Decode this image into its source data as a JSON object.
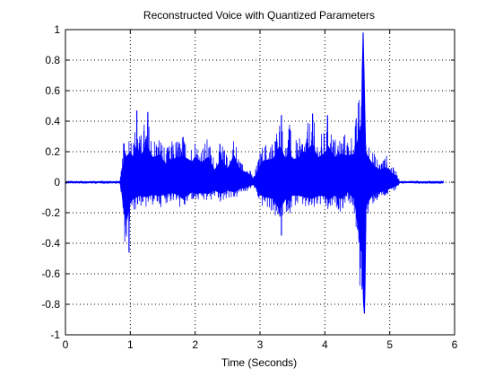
{
  "colors": {
    "background": "#ffffff",
    "axes": "#000000",
    "grid": "#000000",
    "signal": "#0000ff"
  },
  "chart_data": {
    "type": "line",
    "title": "Reconstructed Voice with Quantized Parameters",
    "xlabel": "Time (Seconds)",
    "ylabel": "",
    "xlim": [
      0,
      6
    ],
    "ylim": [
      -1,
      1
    ],
    "grid": true,
    "x_ticks": [
      0,
      1,
      2,
      3,
      4,
      5,
      6
    ],
    "y_ticks": [
      -1,
      -0.8,
      -0.6,
      -0.4,
      -0.2,
      0,
      0.2,
      0.4,
      0.6,
      0.8,
      1
    ],
    "x_tick_labels": [
      "0",
      "1",
      "2",
      "3",
      "4",
      "5",
      "6"
    ],
    "y_tick_labels": [
      "-1",
      "-0.8",
      "-0.6",
      "-0.4",
      "-0.2",
      "0",
      "0.2",
      "0.4",
      "0.6",
      "0.8",
      "1"
    ],
    "series": [
      {
        "color": "#0000ff",
        "envelope": {
          "x": [
            0.0,
            0.3,
            0.6,
            0.84,
            0.86,
            0.9,
            0.95,
            1.0,
            1.05,
            1.1,
            1.15,
            1.25,
            1.35,
            1.45,
            1.55,
            1.65,
            1.75,
            1.8,
            1.95,
            2.0,
            2.1,
            2.2,
            2.3,
            2.4,
            2.5,
            2.6,
            2.7,
            2.8,
            2.9,
            3.0,
            3.05,
            3.2,
            3.3,
            3.4,
            3.45,
            3.5,
            3.6,
            3.7,
            3.8,
            3.9,
            4.0,
            4.05,
            4.15,
            4.25,
            4.35,
            4.45,
            4.55,
            4.58,
            4.62,
            4.66,
            4.75,
            4.85,
            4.95,
            5.05,
            5.1,
            5.15,
            5.3,
            5.5,
            5.83
          ],
          "ymax": [
            0.01,
            0.01,
            0.01,
            0.01,
            0.08,
            0.28,
            0.32,
            0.36,
            0.3,
            0.47,
            0.3,
            0.46,
            0.3,
            0.33,
            0.22,
            0.28,
            0.3,
            0.32,
            0.25,
            0.3,
            0.24,
            0.3,
            0.15,
            0.28,
            0.17,
            0.32,
            0.14,
            0.12,
            0.04,
            0.2,
            0.26,
            0.28,
            0.44,
            0.28,
            0.4,
            0.28,
            0.28,
            0.36,
            0.45,
            0.3,
            0.35,
            0.44,
            0.3,
            0.34,
            0.32,
            0.34,
            0.65,
            0.98,
            0.4,
            0.32,
            0.2,
            0.15,
            0.18,
            0.1,
            0.08,
            0.01,
            0.01,
            0.01,
            0.01
          ],
          "ymin": [
            -0.01,
            -0.01,
            -0.01,
            -0.01,
            -0.1,
            -0.38,
            -0.46,
            -0.24,
            -0.2,
            -0.18,
            -0.16,
            -0.18,
            -0.15,
            -0.17,
            -0.14,
            -0.13,
            -0.16,
            -0.2,
            -0.12,
            -0.14,
            -0.13,
            -0.14,
            -0.1,
            -0.14,
            -0.1,
            -0.12,
            -0.08,
            -0.06,
            -0.03,
            -0.15,
            -0.17,
            -0.2,
            -0.33,
            -0.2,
            -0.22,
            -0.16,
            -0.16,
            -0.18,
            -0.2,
            -0.16,
            -0.17,
            -0.22,
            -0.16,
            -0.2,
            -0.12,
            -0.2,
            -0.8,
            -0.86,
            -0.35,
            -0.25,
            -0.14,
            -0.12,
            -0.1,
            -0.06,
            -0.05,
            -0.01,
            -0.01,
            -0.01,
            -0.01
          ]
        },
        "peaks": [
          {
            "x": 0.98,
            "y": -0.46
          },
          {
            "x": 1.1,
            "y": 0.47
          },
          {
            "x": 1.27,
            "y": 0.46
          },
          {
            "x": 3.33,
            "y": 0.44
          },
          {
            "x": 3.33,
            "y": -0.35
          },
          {
            "x": 3.81,
            "y": 0.45
          },
          {
            "x": 4.04,
            "y": 0.44
          },
          {
            "x": 4.59,
            "y": 0.98
          },
          {
            "x": 4.61,
            "y": -0.86
          }
        ]
      }
    ]
  }
}
